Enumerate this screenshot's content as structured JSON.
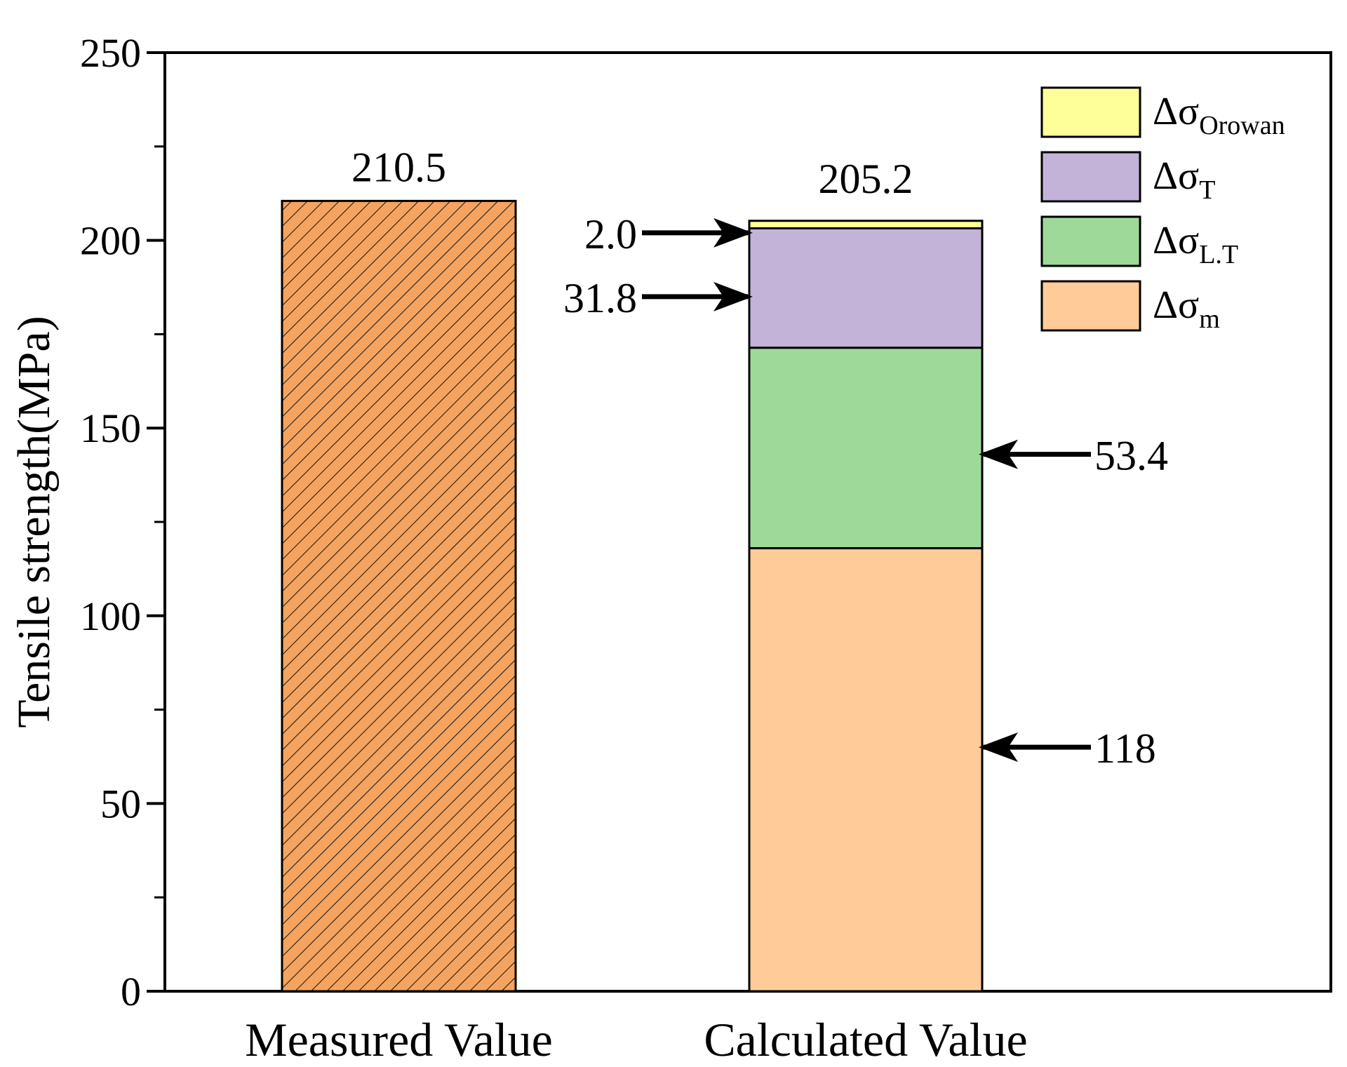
{
  "chart_data": {
    "type": "bar",
    "ylabel": "Tensile strength(MPa)",
    "xlabel": "",
    "ylim": [
      0,
      250
    ],
    "yticks": [
      "0",
      "50",
      "100",
      "150",
      "200",
      "250"
    ],
    "categories": [
      "Measured Value",
      "Calculated Value"
    ],
    "measured": {
      "value": 210.5,
      "label": "210.5",
      "color": "#F4A460",
      "pattern": "hatched"
    },
    "calculated": {
      "total": 205.2,
      "total_label": "205.2",
      "stack": [
        {
          "name": "Δσm",
          "base": "Δσ",
          "sub": "m",
          "value": 118,
          "label": "118",
          "color": "#FFCC99"
        },
        {
          "name": "ΔσL.T",
          "base": "Δσ",
          "sub": "L.T",
          "value": 53.4,
          "label": "53.4",
          "color": "#9ED99A"
        },
        {
          "name": "ΔσT",
          "base": "Δσ",
          "sub": "T",
          "value": 31.8,
          "label": "31.8",
          "color": "#C4B3D8"
        },
        {
          "name": "ΔσOrowan",
          "base": "Δσ",
          "sub": "Orowan",
          "value": 2.0,
          "label": "2.0",
          "color": "#FFFF99"
        }
      ]
    },
    "legend": {
      "placement": "top-right",
      "order": [
        "ΔσOrowan",
        "ΔσT",
        "ΔσL.T",
        "Δσm"
      ]
    }
  }
}
